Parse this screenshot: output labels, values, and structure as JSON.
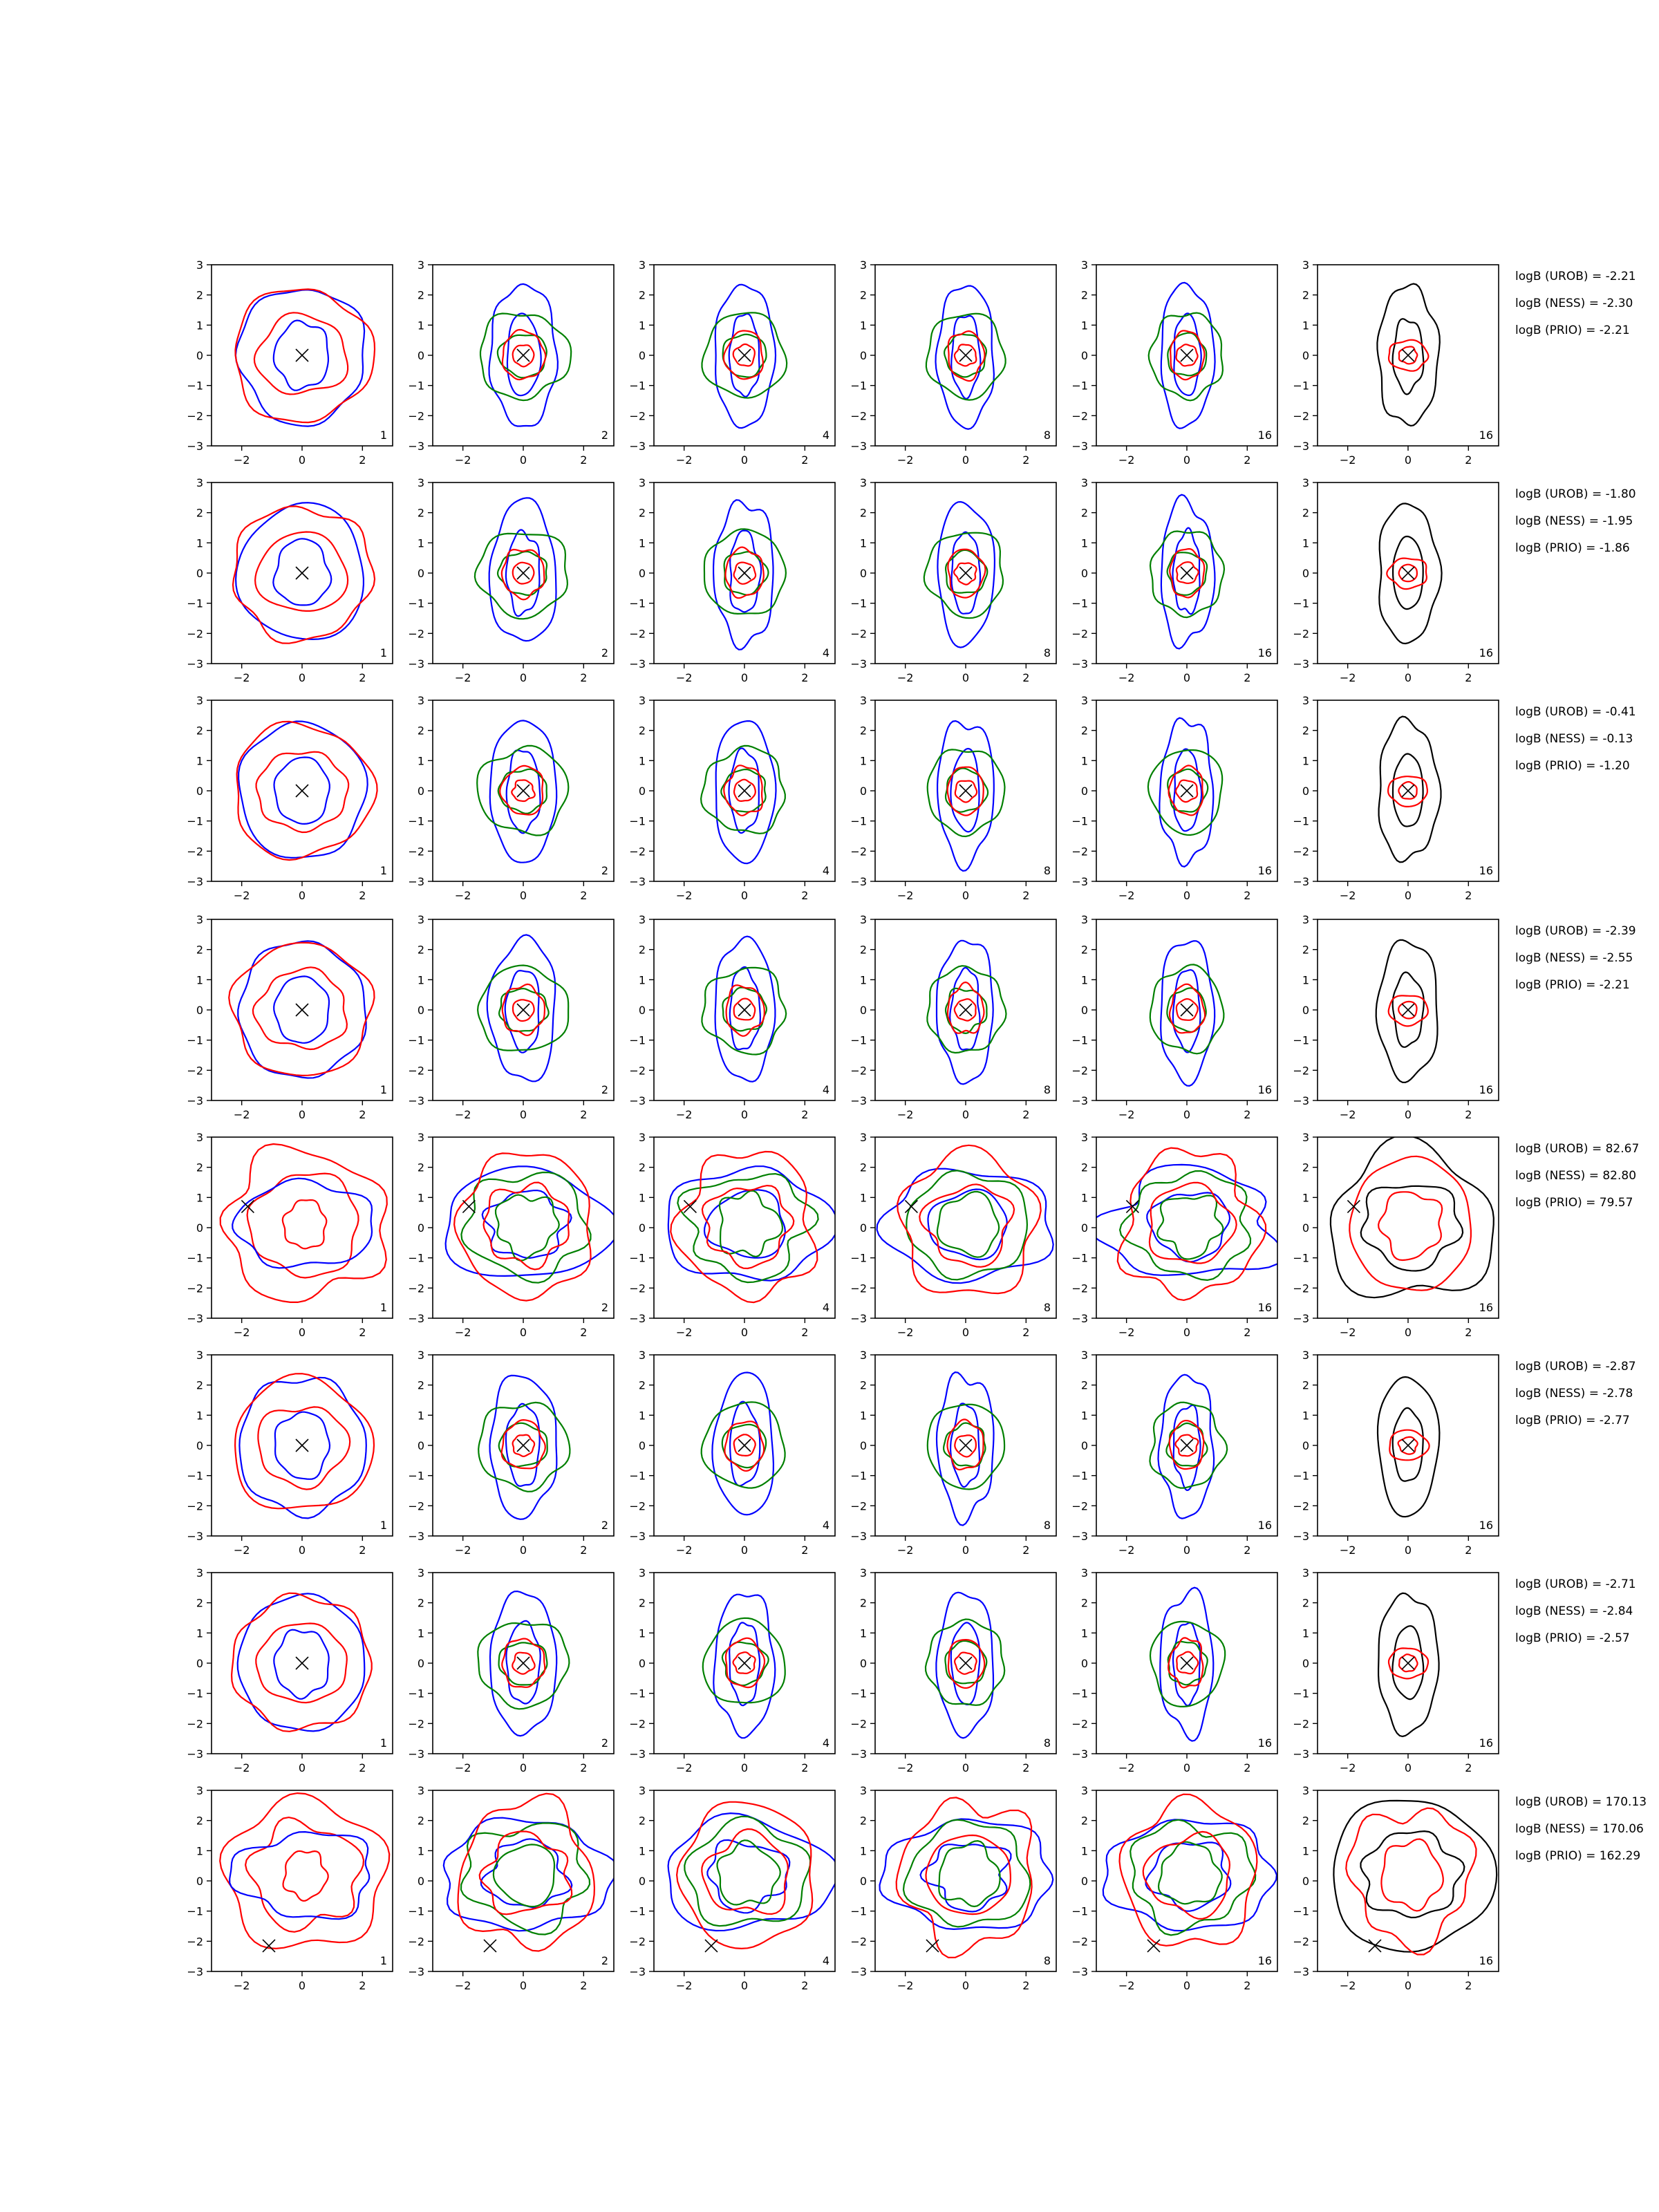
{
  "chart_data": {
    "type": "contour",
    "grid": {
      "rows": 8,
      "cols": 6
    },
    "xlim": [
      -3,
      3
    ],
    "ylim": [
      -3,
      3
    ],
    "xticks": [
      -2,
      0,
      2
    ],
    "yticks": [
      -3,
      -2,
      -1,
      0,
      1,
      2,
      3
    ],
    "tick_label_text": {
      "x": [
        "−2",
        "0",
        "2"
      ],
      "y": [
        "3",
        "2",
        "1",
        "0",
        "−1",
        "−2",
        "−3"
      ]
    },
    "colors": {
      "blue": "#0000ff",
      "green": "#008000",
      "red": "#ff0000",
      "black": "#000000"
    },
    "column_labels": [
      "1",
      "2",
      "4",
      "8",
      "16",
      "16"
    ],
    "rows": [
      {
        "marker": [
          0,
          0
        ],
        "annotations": [
          "logB (UROB) = -2.21",
          "logB (NESS) = -2.30",
          "logB (PRIO) = -2.21"
        ],
        "broad": false,
        "warp": 0
      },
      {
        "marker": [
          0,
          0
        ],
        "annotations": [
          "logB (UROB) = -1.80",
          "logB (NESS) = -1.95",
          "logB (PRIO) = -1.86"
        ],
        "broad": false,
        "warp": 1
      },
      {
        "marker": [
          0,
          0
        ],
        "annotations": [
          "logB (UROB) = -0.41",
          "logB (NESS) = -0.13",
          "logB (PRIO) = -1.20"
        ],
        "broad": false,
        "warp": 2
      },
      {
        "marker": [
          0,
          0
        ],
        "annotations": [
          "logB (UROB) = -2.39",
          "logB (NESS) = -2.55",
          "logB (PRIO) = -2.21"
        ],
        "broad": false,
        "warp": 3
      },
      {
        "marker": [
          -1.8,
          0.7
        ],
        "annotations": [
          "logB (UROB) = 82.67",
          "logB (NESS) = 82.80",
          "logB (PRIO) = 79.57"
        ],
        "broad": true,
        "warp": 4
      },
      {
        "marker": [
          0,
          0
        ],
        "annotations": [
          "logB (UROB) = -2.87",
          "logB (NESS) = -2.78",
          "logB (PRIO) = -2.77"
        ],
        "broad": false,
        "warp": 5
      },
      {
        "marker": [
          0,
          0
        ],
        "annotations": [
          "logB (UROB) = -2.71",
          "logB (NESS) = -2.84",
          "logB (PRIO) = -2.57"
        ],
        "broad": false,
        "warp": 6
      },
      {
        "marker": [
          -1.1,
          -2.15
        ],
        "annotations": [
          "logB (UROB) = 170.13",
          "logB (NESS) = 170.06",
          "logB (PRIO) = 162.29"
        ],
        "broad": true,
        "warp": 7
      }
    ]
  }
}
